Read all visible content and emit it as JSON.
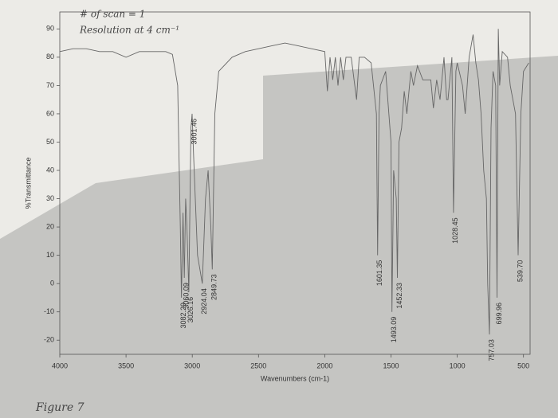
{
  "chart_data": {
    "type": "line",
    "annotations": [
      "# of scan = 1",
      "Resolution at 4 cm⁻¹",
      "Figure 7"
    ],
    "x_label": "Wavenumbers (cm-1)",
    "y_label": "%Transmittance",
    "xlim": [
      4000,
      450
    ],
    "ylim": [
      -25,
      96
    ],
    "xticks": [
      4000,
      3500,
      3000,
      2500,
      2000,
      1500,
      1000,
      500
    ],
    "yticks": [
      -20,
      -10,
      0,
      10,
      20,
      30,
      40,
      50,
      60,
      70,
      80,
      90
    ],
    "color": "#666666",
    "x": [
      4000,
      3900,
      3800,
      3700,
      3600,
      3500,
      3400,
      3300,
      3200,
      3150,
      3110,
      3090,
      3082,
      3070,
      3060,
      3050,
      3040,
      3026,
      3010,
      3001,
      2990,
      2960,
      2924,
      2900,
      2880,
      2860,
      2849,
      2830,
      2800,
      2700,
      2600,
      2500,
      2400,
      2300,
      2200,
      2100,
      2000,
      1980,
      1960,
      1940,
      1920,
      1900,
      1880,
      1860,
      1840,
      1800,
      1760,
      1740,
      1700,
      1650,
      1610,
      1601,
      1590,
      1580,
      1540,
      1500,
      1493,
      1480,
      1460,
      1452,
      1440,
      1420,
      1400,
      1380,
      1350,
      1330,
      1300,
      1260,
      1200,
      1180,
      1155,
      1130,
      1100,
      1080,
      1070,
      1040,
      1028,
      1010,
      1000,
      960,
      940,
      910,
      880,
      860,
      840,
      820,
      800,
      780,
      770,
      757,
      745,
      730,
      710,
      700,
      690,
      680,
      660,
      620,
      600,
      560,
      540,
      520,
      500,
      460
    ],
    "values": [
      82,
      83,
      83,
      82,
      82,
      80,
      82,
      82,
      82,
      81,
      70,
      20,
      -5,
      25,
      2,
      30,
      20,
      -3,
      55,
      60,
      45,
      10,
      0,
      30,
      40,
      20,
      5,
      60,
      75,
      80,
      82,
      83,
      84,
      85,
      84,
      83,
      82,
      68,
      80,
      72,
      80,
      70,
      80,
      72,
      80,
      80,
      65,
      80,
      80,
      78,
      60,
      10,
      60,
      70,
      75,
      50,
      -10,
      40,
      30,
      2,
      50,
      55,
      68,
      60,
      75,
      70,
      77,
      72,
      72,
      62,
      72,
      65,
      80,
      65,
      65,
      80,
      25,
      75,
      78,
      70,
      60,
      80,
      88,
      78,
      72,
      60,
      40,
      30,
      0,
      -18,
      55,
      75,
      70,
      -5,
      90,
      70,
      82,
      80,
      70,
      60,
      10,
      60,
      75,
      78
    ],
    "peak_x": [
      3082.29,
      3060.09,
      3026.16,
      3001.46,
      2924.04,
      2849.73,
      1601.35,
      1493.09,
      1452.33,
      1028.45,
      757.03,
      699.96,
      539.7
    ],
    "peak_labels": [
      "3082.29",
      "3060.09",
      "3026.16",
      "3001.46",
      "2924.04",
      "2849.73",
      "1601.35",
      "1493.09",
      "1452.33",
      "1028.45",
      "757.03",
      "699.96",
      "539.70"
    ],
    "grid": false
  }
}
